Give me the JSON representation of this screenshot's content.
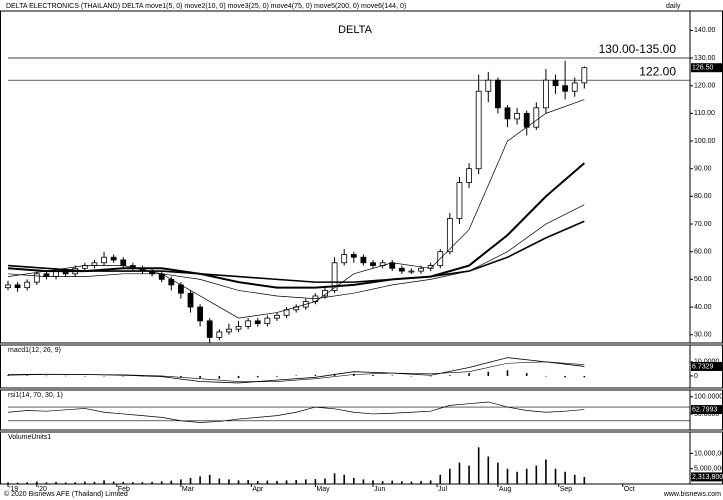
{
  "header": {
    "title": "DELTA ELECTRONICS (THAILAND) DELTA move1(5, 0) move2(10, 0) move3(25, 0) move4(75, 0) move5(200, 0) move6(144, 0)",
    "period": "daily"
  },
  "chart_data": [
    {
      "type": "candlestick",
      "title": "DELTA",
      "color": "#000000",
      "x": [
        0,
        3,
        6,
        9,
        12,
        15,
        18,
        21,
        24,
        27,
        30,
        33,
        36,
        39,
        42,
        45,
        48,
        51,
        54,
        57,
        60,
        63,
        66,
        69,
        72,
        75,
        78,
        81,
        84,
        87,
        90,
        93,
        96,
        99,
        102,
        105,
        108,
        111,
        114,
        117,
        120,
        123,
        126,
        129,
        132,
        135,
        138,
        141,
        144,
        147,
        150,
        153,
        156,
        159,
        162,
        165,
        168,
        171,
        174,
        177,
        180
      ],
      "open": [
        47,
        48,
        47,
        49,
        52,
        51,
        53,
        52,
        54,
        55,
        56,
        58,
        57,
        55,
        54,
        53,
        52,
        50,
        48,
        45,
        40,
        35,
        29,
        31,
        32,
        33,
        35,
        34,
        36,
        37,
        39,
        40,
        42,
        44,
        46,
        56,
        59,
        58,
        56,
        55,
        56,
        54,
        53,
        53,
        54,
        55,
        60,
        72,
        85,
        90,
        118,
        122,
        112,
        108,
        110,
        105,
        112,
        122,
        120,
        118,
        121
      ],
      "high": [
        49.5,
        49,
        50,
        53,
        53,
        54,
        54,
        55,
        56,
        57,
        60,
        59,
        58,
        56,
        55,
        54,
        53,
        51,
        49,
        46,
        41,
        36,
        32,
        34,
        35,
        36,
        36,
        37,
        38,
        40,
        41,
        43,
        45,
        47,
        58,
        61,
        60,
        59,
        57,
        57,
        57,
        55,
        54,
        55,
        56,
        61,
        74,
        87,
        92,
        124,
        125,
        123,
        113,
        112,
        111,
        114,
        126,
        124,
        129,
        123,
        127
      ],
      "low": [
        46,
        45.5,
        46,
        48,
        50,
        50,
        51,
        51,
        53,
        54,
        55,
        56,
        54,
        53,
        52,
        51,
        49,
        46,
        43,
        38,
        33,
        27,
        28,
        30,
        31,
        32,
        33,
        33,
        35,
        36,
        38,
        39,
        41,
        43,
        45,
        55,
        56,
        55,
        54,
        54,
        53,
        52,
        52,
        52,
        53,
        54,
        59,
        70,
        83,
        88,
        114,
        110,
        105,
        106,
        102,
        104,
        110,
        117,
        115,
        116,
        119
      ],
      "close": [
        48,
        47,
        49,
        52,
        51,
        53,
        52,
        54,
        55,
        56,
        58,
        57,
        55,
        54,
        53,
        52,
        50,
        48,
        45,
        40,
        35,
        29,
        31,
        32,
        33,
        35,
        34,
        36,
        37,
        39,
        40,
        42,
        44,
        46,
        56,
        59,
        58,
        56,
        55,
        56,
        54,
        53,
        53,
        54,
        55,
        60,
        72,
        85,
        90,
        118,
        122,
        112,
        108,
        110,
        105,
        112,
        122,
        120,
        118,
        121,
        126.5
      ],
      "last_label": "126.50",
      "lines": [
        {
          "x": [
            0,
            12,
            24,
            36,
            48,
            60,
            72,
            84,
            96,
            108,
            120,
            132,
            144,
            156,
            168,
            180
          ],
          "values": [
            51,
            53,
            55,
            55,
            52,
            44,
            36,
            38,
            42,
            52,
            56,
            54,
            68,
            100,
            110,
            115
          ],
          "color": "#000000",
          "width": 0.7
        },
        {
          "x": [
            0,
            12,
            24,
            36,
            48,
            60,
            72,
            84,
            96,
            108,
            120,
            132,
            144,
            156,
            168,
            180
          ],
          "values": [
            54,
            53,
            53,
            54,
            54,
            52,
            49,
            47,
            47,
            48,
            50,
            51,
            55,
            66,
            80,
            92
          ],
          "color": "#000000",
          "width": 2
        },
        {
          "x": [
            0,
            12,
            24,
            36,
            48,
            60,
            72,
            84,
            96,
            108,
            120,
            132,
            144,
            156,
            168,
            180
          ],
          "values": [
            52,
            51,
            51,
            52,
            52,
            50,
            46,
            44,
            43,
            45,
            48,
            50,
            53,
            60,
            70,
            77
          ],
          "color": "#000000",
          "width": 0.7
        },
        {
          "x": [
            0,
            12,
            24,
            36,
            48,
            60,
            72,
            84,
            96,
            108,
            120,
            132,
            144,
            156,
            168,
            180
          ],
          "values": [
            55,
            54,
            53,
            53,
            53,
            52,
            51,
            50,
            49,
            49,
            50,
            51,
            53,
            58,
            65,
            71
          ],
          "color": "#000000",
          "width": 1.6
        }
      ],
      "levels": [
        {
          "value": 130,
          "label": "130.00-135.00"
        },
        {
          "value": 122,
          "label": "122.00"
        }
      ],
      "xlim": [
        0,
        213
      ],
      "ylim": [
        27,
        147
      ],
      "yticks": [
        {
          "value": 30,
          "label": "30.00"
        },
        {
          "value": 40,
          "label": "40.00"
        },
        {
          "value": 50,
          "label": "50.00"
        },
        {
          "value": 60,
          "label": "60.00"
        },
        {
          "value": 70,
          "label": "70.00"
        },
        {
          "value": 80,
          "label": "80.00"
        },
        {
          "value": 90,
          "label": "90.00"
        },
        {
          "value": 100,
          "label": "100.00"
        },
        {
          "value": 110,
          "label": "110.00"
        },
        {
          "value": 120,
          "label": "120.00"
        },
        {
          "value": 130,
          "label": "130.00"
        },
        {
          "value": 140,
          "label": "140.00"
        }
      ]
    },
    {
      "type": "bar",
      "title": "macd1(12, 26, 9)",
      "color": "#000000",
      "x": [
        0,
        6,
        12,
        18,
        24,
        30,
        36,
        42,
        48,
        54,
        60,
        66,
        72,
        78,
        84,
        90,
        96,
        102,
        108,
        114,
        120,
        126,
        132,
        138,
        144,
        150,
        156,
        162,
        168,
        174,
        180
      ],
      "values": [
        0.5,
        0.3,
        0.2,
        0.1,
        0,
        -0.2,
        -0.3,
        -0.4,
        -0.5,
        -0.8,
        -1.5,
        -2,
        -1.5,
        -1,
        -0.5,
        0.3,
        0.8,
        1.5,
        1.5,
        0.8,
        0.3,
        0,
        -0.2,
        0.5,
        2,
        3,
        4,
        2,
        0,
        -1,
        -1
      ],
      "lines": [
        {
          "x": [
            0,
            12,
            24,
            36,
            48,
            60,
            72,
            84,
            96,
            108,
            120,
            132,
            144,
            156,
            168,
            180
          ],
          "values": [
            1,
            1.2,
            1,
            0.5,
            -0.5,
            -4,
            -5,
            -3,
            -1,
            3,
            2,
            0.5,
            6,
            13,
            10,
            6.7329
          ],
          "color": "#000000",
          "width": 0.8
        },
        {
          "x": [
            0,
            12,
            24,
            36,
            48,
            60,
            72,
            84,
            96,
            108,
            120,
            132,
            144,
            156,
            168,
            180
          ],
          "values": [
            0.5,
            1,
            1,
            0.8,
            0,
            -2,
            -4,
            -4,
            -2,
            1,
            2,
            1.5,
            3,
            9,
            10,
            8
          ],
          "color": "#000000",
          "width": 0.6
        }
      ],
      "last_label": "6.7329",
      "xlim": [
        0,
        213
      ],
      "ylim": [
        -8.6,
        22
      ],
      "yticks": [
        {
          "value": 10,
          "label": "10.0000"
        },
        0
      ]
    },
    {
      "type": "line",
      "title": "rsi1(14, 70, 30, 1)",
      "color": "#000000",
      "x": [
        0,
        6,
        12,
        18,
        24,
        30,
        36,
        42,
        48,
        54,
        60,
        66,
        72,
        78,
        84,
        90,
        96,
        102,
        108,
        114,
        120,
        126,
        132,
        138,
        144,
        150,
        156,
        162,
        168,
        174,
        180
      ],
      "values": [
        55,
        60,
        58,
        62,
        66,
        55,
        50,
        45,
        40,
        30,
        25,
        28,
        35,
        40,
        45,
        55,
        70,
        65,
        55,
        50,
        52,
        55,
        58,
        75,
        80,
        85,
        70,
        60,
        55,
        58,
        62.7993
      ],
      "bands": [
        70,
        30
      ],
      "last_label": "62.7993",
      "xlim": [
        0,
        213
      ],
      "ylim": [
        3,
        120
      ],
      "yticks": [
        {
          "value": 100,
          "label": "100.0000"
        },
        {
          "value": 50,
          "label": "50.0000"
        }
      ]
    },
    {
      "type": "bar",
      "title": "VolumeUnits1",
      "color": "#000000",
      "x": [
        0,
        3,
        6,
        9,
        12,
        15,
        18,
        21,
        24,
        27,
        30,
        33,
        36,
        39,
        42,
        45,
        48,
        51,
        54,
        57,
        60,
        63,
        66,
        69,
        72,
        75,
        78,
        81,
        84,
        87,
        90,
        93,
        96,
        99,
        102,
        105,
        108,
        111,
        114,
        117,
        120,
        123,
        126,
        129,
        132,
        135,
        138,
        141,
        144,
        147,
        150,
        153,
        156,
        159,
        162,
        165,
        168,
        171,
        174,
        177,
        180
      ],
      "values": [
        500000,
        400000,
        600000,
        800000,
        500000,
        700000,
        500000,
        600000,
        800000,
        700000,
        1200000,
        800000,
        700000,
        600000,
        600000,
        700000,
        900000,
        1100000,
        1500000,
        2000000,
        2500000,
        3000000,
        1800000,
        1500000,
        1200000,
        1300000,
        1000000,
        1100000,
        1000000,
        1200000,
        1300000,
        1500000,
        1600000,
        1800000,
        3500000,
        3000000,
        2000000,
        1500000,
        1200000,
        1000000,
        1100000,
        900000,
        800000,
        1000000,
        1200000,
        3000000,
        5000000,
        7000000,
        6000000,
        12000000,
        9000000,
        7000000,
        5000000,
        4000000,
        5000000,
        6000000,
        8000000,
        5000000,
        4000000,
        3000000,
        2313800
      ],
      "last_label": "2,313,800",
      "xlim": [
        0,
        213
      ],
      "ylim": [
        0,
        17000000
      ],
      "yticks": [
        {
          "value": 10000000,
          "label": "10,000,000"
        },
        {
          "value": 5000000,
          "label": "5,000,000"
        }
      ],
      "xticks": [
        {
          "value": 0,
          "label": "'19"
        },
        {
          "value": 9,
          "label": "'20"
        },
        {
          "value": 34,
          "label": "Feb"
        },
        {
          "value": 54,
          "label": "Mar"
        },
        {
          "value": 76,
          "label": "Apr"
        },
        {
          "value": 96,
          "label": "May"
        },
        {
          "value": 114,
          "label": "Jun"
        },
        {
          "value": 134,
          "label": "Jul"
        },
        {
          "value": 153,
          "label": "Aug"
        },
        {
          "value": 172,
          "label": "Sep"
        },
        {
          "value": 192,
          "label": "Oct"
        }
      ]
    }
  ],
  "footer": {
    "copyright": "© 2020 Bisnews AFE (Thailand) Limited",
    "site": "www.bisnews.com"
  }
}
